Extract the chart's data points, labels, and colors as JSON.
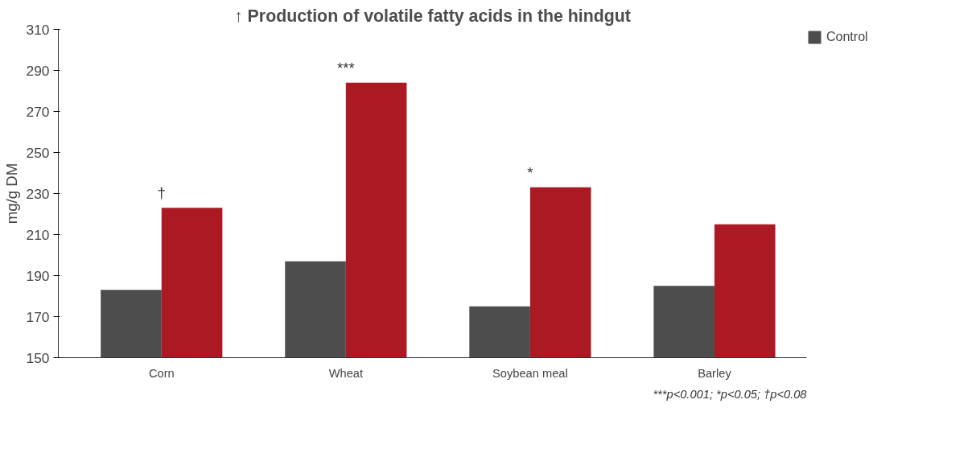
{
  "chart_data": {
    "type": "bar",
    "title": "↑ Production of volatile fatty acids in the hindgut",
    "ylabel": "mg/g DM",
    "categories": [
      "Corn",
      "Wheat",
      "Soybean meal",
      "Barley"
    ],
    "series": [
      {
        "name": "Control",
        "color": "#4d4d4d",
        "values": [
          183,
          197,
          175,
          185
        ]
      },
      {
        "color": "#ab1a22",
        "values": [
          223,
          284,
          233,
          215
        ]
      }
    ],
    "ylim": [
      150,
      310
    ],
    "yticks": [
      150,
      170,
      190,
      210,
      230,
      250,
      270,
      290,
      310
    ],
    "grid": false,
    "legend": "top right",
    "annotations": [
      "†",
      "***",
      "*",
      "***p<0.001; *p<0.05; †p<0.08"
    ]
  }
}
